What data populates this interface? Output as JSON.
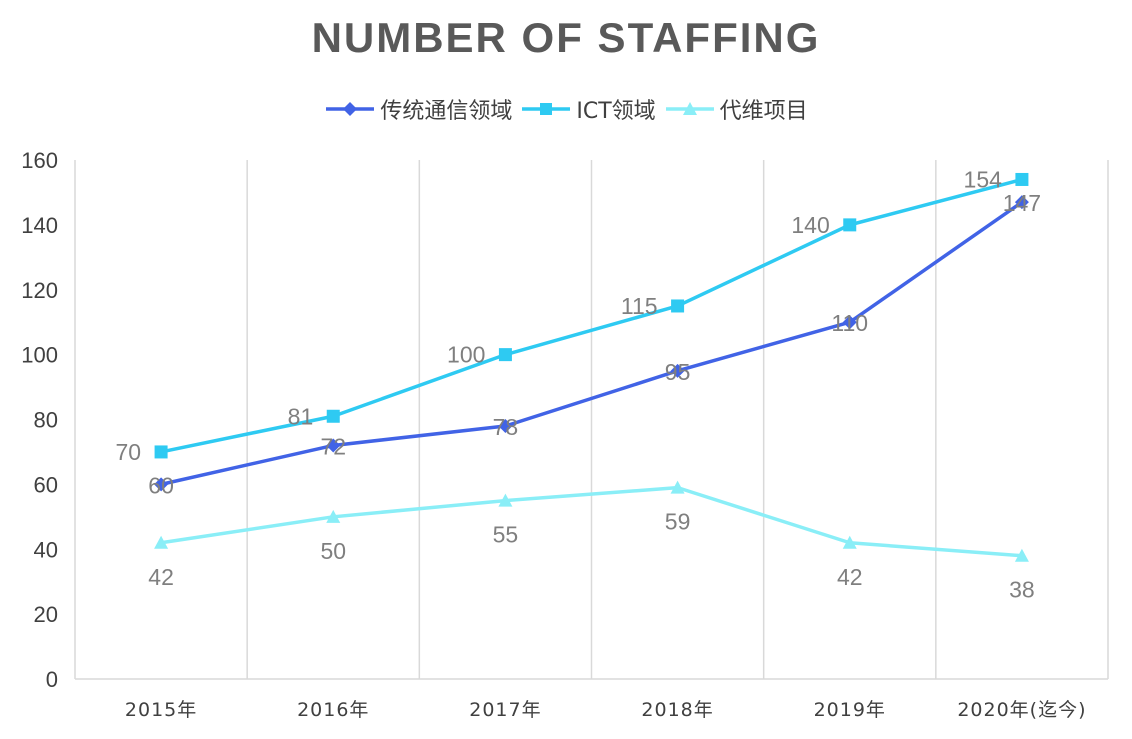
{
  "chart_data": {
    "type": "line",
    "title": "NUMBER OF STAFFING",
    "categories": [
      "2015年",
      "2016年",
      "2017年",
      "2018年",
      "2019年",
      "2020年(迄今)"
    ],
    "ylim": [
      0,
      160
    ],
    "yticks": [
      "0",
      "20",
      "40",
      "60",
      "80",
      "100",
      "120",
      "140",
      "160"
    ],
    "grid": "vertical",
    "legend_position": "top",
    "series": [
      {
        "name": "传统通信领域",
        "color": "#4163E6",
        "marker": "diamond",
        "values": [
          60,
          72,
          78,
          95,
          110,
          147
        ],
        "label_position": "on"
      },
      {
        "name": "ICT领域",
        "color": "#2ECAF2",
        "marker": "square",
        "values": [
          70,
          81,
          100,
          115,
          140,
          154
        ],
        "label_position": "left"
      },
      {
        "name": "代维项目",
        "color": "#8AEEF7",
        "marker": "triangle",
        "values": [
          42,
          50,
          55,
          59,
          42,
          38
        ],
        "label_position": "below"
      }
    ]
  }
}
